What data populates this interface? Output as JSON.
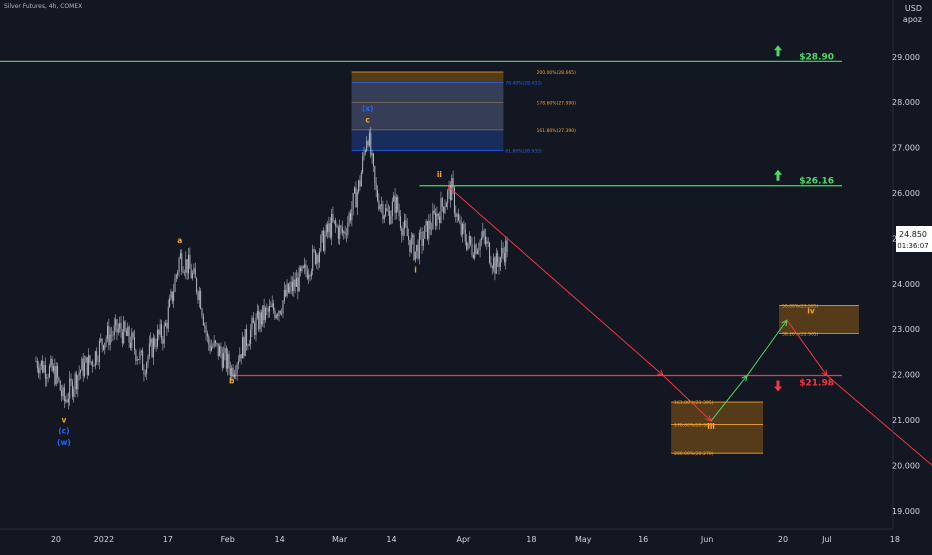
{
  "header": {
    "title": "Silver Futures, 4h, COMEX",
    "currency": "USD",
    "scale_mode": "apoz"
  },
  "price_badge": {
    "price": "24.850",
    "countdown": "01:36:07"
  },
  "colors": {
    "background": "#131722",
    "candles": "#b2b5be",
    "support_line": "#f23645",
    "resistance_line": "#4cd964",
    "projection_down": "#f23645",
    "projection_up": "#4cd964",
    "wave_orange": "#f5a623",
    "wave_blue": "#2962ff",
    "fib_box_orange": "#8c5a12",
    "fib_box_blue": "#1e3f8a"
  },
  "chart_data": {
    "type": "candlestick",
    "title": "Silver Futures, 4h, COMEX",
    "xlabel": "",
    "ylabel": "USD",
    "ylim": [
      18.6,
      30.25
    ],
    "x_ticks": [
      "20",
      "2022",
      "17",
      "Feb",
      "14",
      "Mar",
      "14",
      "Apr",
      "18",
      "May",
      "16",
      "Jun",
      "20",
      "Jul",
      "18"
    ],
    "y_ticks": [
      "19.000",
      "20.000",
      "21.000",
      "22.000",
      "23.000",
      "24.000",
      "25.000",
      "26.000",
      "27.000",
      "28.000",
      "29.000"
    ],
    "grid": false,
    "price_path": [
      {
        "date": "2021-12-15",
        "close": 22.3
      },
      {
        "date": "2021-12-20",
        "close": 22.0
      },
      {
        "date": "2021-12-22",
        "close": 21.4
      },
      {
        "date": "2021-12-26",
        "close": 22.1
      },
      {
        "date": "2021-12-29",
        "close": 22.3
      },
      {
        "date": "2022-01-01",
        "close": 22.8
      },
      {
        "date": "2022-01-05",
        "close": 23.0
      },
      {
        "date": "2022-01-08",
        "close": 22.7
      },
      {
        "date": "2022-01-11",
        "close": 22.2
      },
      {
        "date": "2022-01-14",
        "close": 22.8
      },
      {
        "date": "2022-01-16",
        "close": 22.9
      },
      {
        "date": "2022-01-18",
        "close": 23.7
      },
      {
        "date": "2022-01-20",
        "close": 24.6
      },
      {
        "date": "2022-01-22",
        "close": 24.4
      },
      {
        "date": "2022-01-25",
        "close": 23.8
      },
      {
        "date": "2022-01-27",
        "close": 22.7
      },
      {
        "date": "2022-01-30",
        "close": 22.5
      },
      {
        "date": "2022-02-02",
        "close": 22.1
      },
      {
        "date": "2022-02-04",
        "close": 22.5
      },
      {
        "date": "2022-02-07",
        "close": 23.0
      },
      {
        "date": "2022-02-10",
        "close": 23.3
      },
      {
        "date": "2022-02-14",
        "close": 23.5
      },
      {
        "date": "2022-02-16",
        "close": 23.8
      },
      {
        "date": "2022-02-20",
        "close": 24.2
      },
      {
        "date": "2022-02-24",
        "close": 24.8
      },
      {
        "date": "2022-02-27",
        "close": 25.3
      },
      {
        "date": "2022-03-02",
        "close": 25.1
      },
      {
        "date": "2022-03-06",
        "close": 26.2
      },
      {
        "date": "2022-03-08",
        "close": 27.4
      },
      {
        "date": "2022-03-10",
        "close": 26.0
      },
      {
        "date": "2022-03-13",
        "close": 25.5
      },
      {
        "date": "2022-03-15",
        "close": 25.8
      },
      {
        "date": "2022-03-17",
        "close": 25.2
      },
      {
        "date": "2022-03-20",
        "close": 24.7
      },
      {
        "date": "2022-03-23",
        "close": 25.2
      },
      {
        "date": "2022-03-26",
        "close": 25.6
      },
      {
        "date": "2022-03-29",
        "close": 26.1
      },
      {
        "date": "2022-03-31",
        "close": 25.2
      },
      {
        "date": "2022-04-03",
        "close": 24.8
      },
      {
        "date": "2022-04-06",
        "close": 25.0
      },
      {
        "date": "2022-04-09",
        "close": 24.4
      },
      {
        "date": "2022-04-12",
        "close": 24.85
      }
    ],
    "horizontal_levels": [
      {
        "price": 28.9,
        "label": "$28.90",
        "color": "#4cd964",
        "arrow": "up",
        "from": "2021-12-05"
      },
      {
        "price": 26.16,
        "label": "$26.16",
        "color": "#4cd964",
        "arrow": "up",
        "from": "2022-03-21"
      },
      {
        "price": 21.98,
        "label": "$21.98",
        "color": "#f23645",
        "arrow": "down",
        "from": "2022-02-02"
      }
    ],
    "projection_path": [
      {
        "date": "2022-03-28",
        "price": 26.16,
        "color": "#f23645"
      },
      {
        "date": "2022-05-21",
        "price": 21.98,
        "color": "#f23645"
      },
      {
        "date": "2022-06-02",
        "price": 20.98,
        "color": "#f23645"
      },
      {
        "date": "2022-06-11",
        "price": 21.98,
        "color": "#4cd964"
      },
      {
        "date": "2022-06-21",
        "price": 23.2,
        "color": "#4cd964"
      },
      {
        "date": "2022-07-01",
        "price": 21.98,
        "color": "#f23645"
      },
      {
        "date": "2022-08-07",
        "price": 19.2,
        "color": "#f23645"
      }
    ],
    "fib_boxes": [
      {
        "fill": "#8c5a12",
        "x_from": "2022-03-04",
        "x_to": "2022-04-11",
        "levels": [
          {
            "price": 28.665,
            "label": "200.00%(28.665)"
          },
          {
            "price": 27.99,
            "label": "178.60%(27.990)"
          },
          {
            "price": 27.39,
            "label": "161.80%(27.390)"
          }
        ]
      },
      {
        "fill": "#1e3f8a",
        "x_from": "2022-03-04",
        "x_to": "2022-04-11",
        "levels": [
          {
            "price": 28.433,
            "label": "76.40%(28.433)"
          },
          {
            "price": 26.935,
            "label": "61.80%(26.935)"
          }
        ]
      },
      {
        "fill": "#8c5a12",
        "x_from": "2022-06-19",
        "x_to": "2022-07-09",
        "levels": [
          {
            "price": 23.525,
            "label": "50.00%(23.525)"
          },
          {
            "price": 22.905,
            "label": "38.20%(22.905)"
          }
        ]
      },
      {
        "fill": "#8c5a12",
        "x_from": "2022-05-23",
        "x_to": "2022-06-15",
        "levels": [
          {
            "price": 21.395,
            "label": "161.80%(21.395)"
          },
          {
            "price": 20.9,
            "label": "178.60%(20.900)"
          },
          {
            "price": 20.27,
            "label": "200.00%(20.270)"
          }
        ]
      }
    ],
    "wave_labels": [
      {
        "text": "v",
        "date": "2021-12-22",
        "price": 20.95,
        "color": "#f5a623"
      },
      {
        "text": "(c)",
        "date": "2021-12-22",
        "price": 20.7,
        "color": "#2962ff"
      },
      {
        "text": "(w)",
        "date": "2021-12-22",
        "price": 20.45,
        "color": "#2962ff"
      },
      {
        "text": "a",
        "date": "2022-01-20",
        "price": 24.9,
        "color": "#f5a623"
      },
      {
        "text": "b",
        "date": "2022-02-02",
        "price": 21.8,
        "color": "#f5a623"
      },
      {
        "text": "(x)",
        "date": "2022-03-08",
        "price": 27.8,
        "color": "#2962ff"
      },
      {
        "text": "c",
        "date": "2022-03-08",
        "price": 27.55,
        "color": "#f5a623"
      },
      {
        "text": "i",
        "date": "2022-03-20",
        "price": 24.25,
        "color": "#f5a623"
      },
      {
        "text": "ii",
        "date": "2022-03-26",
        "price": 26.35,
        "color": "#f5a623"
      },
      {
        "text": "iii",
        "date": "2022-06-02",
        "price": 20.8,
        "color": "#f5a623"
      },
      {
        "text": "iv",
        "date": "2022-06-27",
        "price": 23.35,
        "color": "#f5a623"
      }
    ]
  }
}
